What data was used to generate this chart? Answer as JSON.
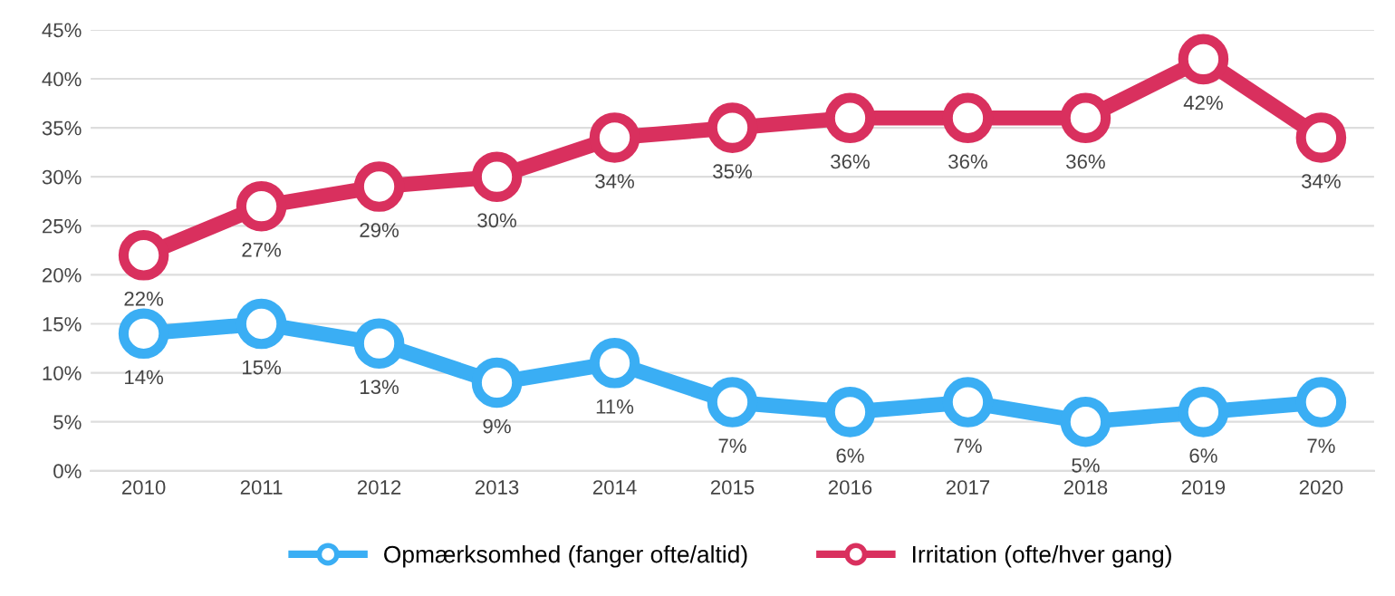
{
  "chart_data": {
    "type": "line",
    "categories": [
      "2010",
      "2011",
      "2012",
      "2013",
      "2014",
      "2015",
      "2016",
      "2017",
      "2018",
      "2019",
      "2020"
    ],
    "series": [
      {
        "name": "Opmærksomhed (fanger ofte/altid)",
        "color": "#3aaef4",
        "values": [
          14,
          15,
          13,
          9,
          11,
          7,
          6,
          7,
          5,
          6,
          7
        ],
        "value_labels": [
          "14%",
          "15%",
          "13%",
          "9%",
          "11%",
          "7%",
          "6%",
          "7%",
          "5%",
          "6%",
          "7%"
        ]
      },
      {
        "name": "Irritation (ofte/hver gang)",
        "color": "#d9305e",
        "values": [
          22,
          27,
          29,
          30,
          34,
          35,
          36,
          36,
          36,
          42,
          34
        ],
        "value_labels": [
          "22%",
          "27%",
          "29%",
          "30%",
          "34%",
          "35%",
          "36%",
          "36%",
          "36%",
          "42%",
          "34%"
        ]
      }
    ],
    "ylim": [
      0,
      45
    ],
    "yticks": [
      {
        "value": 0,
        "label": "0%"
      },
      {
        "value": 5,
        "label": "5%"
      },
      {
        "value": 10,
        "label": "10%"
      },
      {
        "value": 15,
        "label": "15%"
      },
      {
        "value": 20,
        "label": "20%"
      },
      {
        "value": 25,
        "label": "25%"
      },
      {
        "value": 30,
        "label": "30%"
      },
      {
        "value": 35,
        "label": "35%"
      },
      {
        "value": 40,
        "label": "40%"
      },
      {
        "value": 45,
        "label": "45%"
      }
    ],
    "grid": "y",
    "legend": "bottom",
    "marker": "circle",
    "line_style": "solid"
  }
}
